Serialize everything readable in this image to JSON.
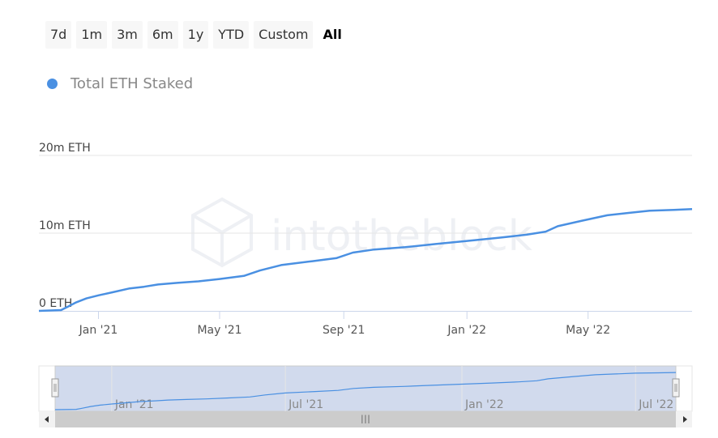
{
  "range_selector": {
    "buttons": [
      "7d",
      "1m",
      "3m",
      "6m",
      "1y",
      "YTD",
      "Custom",
      "All"
    ],
    "active": "All"
  },
  "legend": {
    "label": "Total ETH Staked",
    "color": "#4a90e2"
  },
  "watermark": {
    "text": "intotheblock"
  },
  "navigator": {
    "scrollbar_grip": "III"
  },
  "chart_data": {
    "type": "line",
    "series": [
      {
        "name": "Total ETH Staked",
        "points": [
          [
            "2020-11-03",
            0
          ],
          [
            "2020-11-25",
            0.1
          ],
          [
            "2020-12-01",
            0.5
          ],
          [
            "2020-12-10",
            1.1
          ],
          [
            "2020-12-20",
            1.6
          ],
          [
            "2021-01-01",
            2.0
          ],
          [
            "2021-01-15",
            2.4
          ],
          [
            "2021-02-01",
            2.9
          ],
          [
            "2021-02-15",
            3.1
          ],
          [
            "2021-03-01",
            3.4
          ],
          [
            "2021-03-20",
            3.6
          ],
          [
            "2021-04-10",
            3.8
          ],
          [
            "2021-05-01",
            4.1
          ],
          [
            "2021-05-25",
            4.5
          ],
          [
            "2021-06-10",
            5.2
          ],
          [
            "2021-07-01",
            5.9
          ],
          [
            "2021-08-01",
            6.4
          ],
          [
            "2021-08-25",
            6.8
          ],
          [
            "2021-09-10",
            7.5
          ],
          [
            "2021-10-01",
            7.9
          ],
          [
            "2021-11-01",
            8.2
          ],
          [
            "2021-12-01",
            8.6
          ],
          [
            "2022-01-01",
            9.0
          ],
          [
            "2022-02-01",
            9.4
          ],
          [
            "2022-03-01",
            9.8
          ],
          [
            "2022-03-20",
            10.2
          ],
          [
            "2022-04-01",
            10.9
          ],
          [
            "2022-04-25",
            11.6
          ],
          [
            "2022-05-20",
            12.3
          ],
          [
            "2022-06-10",
            12.6
          ],
          [
            "2022-07-01",
            12.9
          ],
          [
            "2022-07-25",
            13.0
          ],
          [
            "2022-08-12",
            13.1
          ]
        ]
      }
    ],
    "x_ticks": [
      "Jan '21",
      "May '21",
      "Sep '21",
      "Jan '22",
      "May '22"
    ],
    "y_ticks": [
      {
        "value": 0,
        "label": "0 ETH"
      },
      {
        "value": 10,
        "label": "10m ETH"
      },
      {
        "value": 20,
        "label": "20m ETH"
      }
    ],
    "navigator_ticks": [
      "Jan '21",
      "Jul '21",
      "Jan '22",
      "Jul '22"
    ],
    "ylim": [
      0,
      20
    ],
    "grid": "horizontal",
    "legend_position": "top-left"
  }
}
